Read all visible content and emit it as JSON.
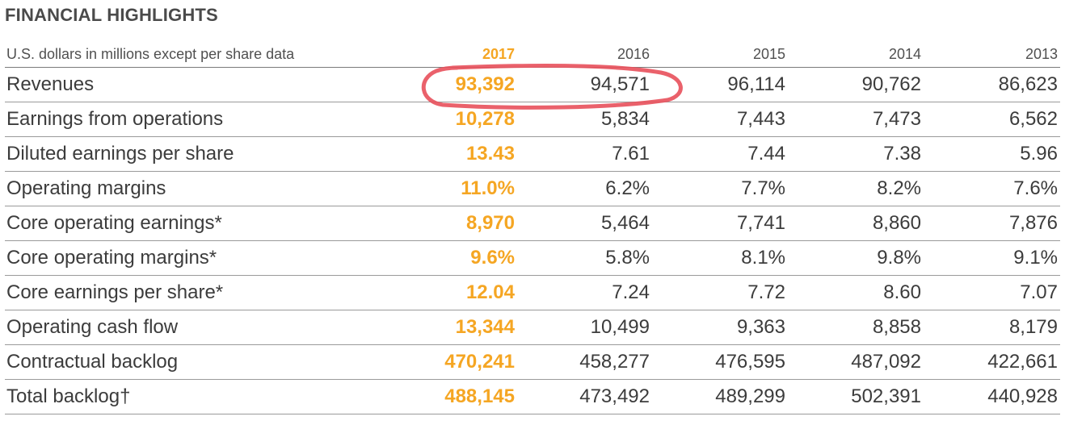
{
  "title": "FINANCIAL HIGHLIGHTS",
  "accent_color": "#f5a623",
  "annotation_color": "#e8505b",
  "table": {
    "header_label": "U.S. dollars in millions except per share data",
    "years": [
      "2017",
      "2016",
      "2015",
      "2014",
      "2013"
    ],
    "rows": [
      {
        "label": "Revenues",
        "values": [
          "93,392",
          "94,571",
          "96,114",
          "90,762",
          "86,623"
        ]
      },
      {
        "label": "Earnings from operations",
        "values": [
          "10,278",
          "5,834",
          "7,443",
          "7,473",
          "6,562"
        ]
      },
      {
        "label": "Diluted earnings per share",
        "values": [
          "13.43",
          "7.61",
          "7.44",
          "7.38",
          "5.96"
        ]
      },
      {
        "label": "Operating margins",
        "values": [
          "11.0%",
          "6.2%",
          "7.7%",
          "8.2%",
          "7.6%"
        ]
      },
      {
        "label": "Core operating earnings*",
        "values": [
          "8,970",
          "5,464",
          "7,741",
          "8,860",
          "7,876"
        ]
      },
      {
        "label": "Core operating margins*",
        "values": [
          "9.6%",
          "5.8%",
          "8.1%",
          "9.8%",
          "9.1%"
        ]
      },
      {
        "label": "Core earnings per share*",
        "values": [
          "12.04",
          "7.24",
          "7.72",
          "8.60",
          "7.07"
        ]
      },
      {
        "label": "Operating cash flow",
        "values": [
          "13,344",
          "10,499",
          "9,363",
          "8,858",
          "8,179"
        ]
      },
      {
        "label": "Contractual backlog",
        "values": [
          "470,241",
          "458,277",
          "476,595",
          "487,092",
          "422,661"
        ]
      },
      {
        "label": "Total backlog†",
        "values": [
          "488,145",
          "473,492",
          "489,299",
          "502,391",
          "440,928"
        ]
      }
    ]
  }
}
